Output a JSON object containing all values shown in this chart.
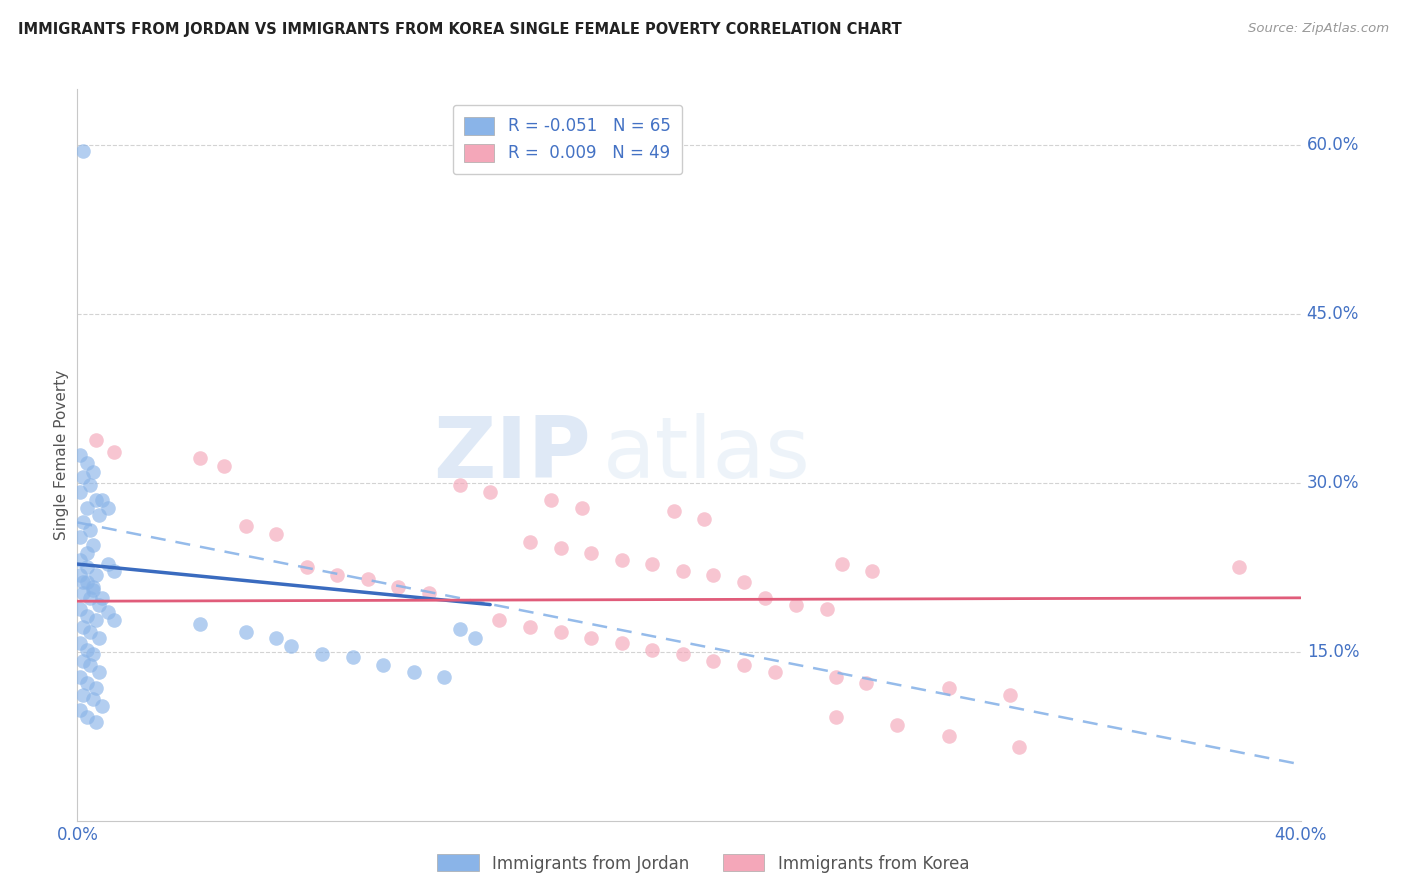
{
  "title": "IMMIGRANTS FROM JORDAN VS IMMIGRANTS FROM KOREA SINGLE FEMALE POVERTY CORRELATION CHART",
  "source": "Source: ZipAtlas.com",
  "ylabel": "Single Female Poverty",
  "x_min": 0.0,
  "x_max": 0.4,
  "y_min": 0.0,
  "y_max": 0.65,
  "x_ticks": [
    0.0,
    0.05,
    0.1,
    0.15,
    0.2,
    0.25,
    0.3,
    0.35,
    0.4
  ],
  "x_tick_labels": [
    "0.0%",
    "",
    "",
    "",
    "",
    "",
    "",
    "",
    "40.0%"
  ],
  "y_ticks_right": [
    0.15,
    0.3,
    0.45,
    0.6
  ],
  "y_tick_labels_right": [
    "15.0%",
    "30.0%",
    "45.0%",
    "60.0%"
  ],
  "jordan_R": "-0.051",
  "jordan_N": "65",
  "korea_R": "0.009",
  "korea_N": "49",
  "jordan_color": "#8ab4e8",
  "korea_color": "#f4a7b9",
  "jordan_line_color": "#3a6bbf",
  "korea_line_color": "#e05c7a",
  "jordan_dash_color": "#8ab4e8",
  "grid_color": "#c8c8c8",
  "background_color": "#ffffff",
  "watermark_zip": "ZIP",
  "watermark_atlas": "atlas",
  "legend_jordan_label": "Immigrants from Jordan",
  "legend_korea_label": "Immigrants from Korea",
  "jordan_line_x0": 0.0,
  "jordan_line_y0": 0.228,
  "jordan_line_x1": 0.135,
  "jordan_line_y1": 0.192,
  "korea_line_x0": 0.0,
  "korea_line_y0": 0.195,
  "korea_line_x1": 0.4,
  "korea_line_y1": 0.198,
  "dash_line_x0": 0.0,
  "dash_line_y0": 0.265,
  "dash_line_x1": 0.4,
  "dash_line_y1": 0.05,
  "jordan_points": [
    [
      0.002,
      0.595
    ],
    [
      0.001,
      0.325
    ],
    [
      0.003,
      0.318
    ],
    [
      0.005,
      0.31
    ],
    [
      0.002,
      0.305
    ],
    [
      0.004,
      0.298
    ],
    [
      0.001,
      0.292
    ],
    [
      0.006,
      0.285
    ],
    [
      0.003,
      0.278
    ],
    [
      0.007,
      0.272
    ],
    [
      0.002,
      0.265
    ],
    [
      0.004,
      0.258
    ],
    [
      0.001,
      0.252
    ],
    [
      0.005,
      0.245
    ],
    [
      0.003,
      0.238
    ],
    [
      0.008,
      0.285
    ],
    [
      0.01,
      0.278
    ],
    [
      0.001,
      0.232
    ],
    [
      0.003,
      0.225
    ],
    [
      0.006,
      0.218
    ],
    [
      0.002,
      0.212
    ],
    [
      0.005,
      0.205
    ],
    [
      0.008,
      0.198
    ],
    [
      0.01,
      0.228
    ],
    [
      0.012,
      0.222
    ],
    [
      0.001,
      0.218
    ],
    [
      0.003,
      0.212
    ],
    [
      0.005,
      0.208
    ],
    [
      0.002,
      0.202
    ],
    [
      0.004,
      0.198
    ],
    [
      0.007,
      0.192
    ],
    [
      0.001,
      0.188
    ],
    [
      0.003,
      0.182
    ],
    [
      0.006,
      0.178
    ],
    [
      0.002,
      0.172
    ],
    [
      0.004,
      0.168
    ],
    [
      0.007,
      0.162
    ],
    [
      0.01,
      0.185
    ],
    [
      0.012,
      0.178
    ],
    [
      0.001,
      0.158
    ],
    [
      0.003,
      0.152
    ],
    [
      0.005,
      0.148
    ],
    [
      0.002,
      0.142
    ],
    [
      0.004,
      0.138
    ],
    [
      0.007,
      0.132
    ],
    [
      0.001,
      0.128
    ],
    [
      0.003,
      0.122
    ],
    [
      0.006,
      0.118
    ],
    [
      0.002,
      0.112
    ],
    [
      0.005,
      0.108
    ],
    [
      0.008,
      0.102
    ],
    [
      0.001,
      0.098
    ],
    [
      0.003,
      0.092
    ],
    [
      0.006,
      0.088
    ],
    [
      0.04,
      0.175
    ],
    [
      0.055,
      0.168
    ],
    [
      0.065,
      0.162
    ],
    [
      0.07,
      0.155
    ],
    [
      0.08,
      0.148
    ],
    [
      0.09,
      0.145
    ],
    [
      0.1,
      0.138
    ],
    [
      0.11,
      0.132
    ],
    [
      0.12,
      0.128
    ],
    [
      0.125,
      0.17
    ],
    [
      0.13,
      0.162
    ]
  ],
  "korea_points": [
    [
      0.006,
      0.338
    ],
    [
      0.012,
      0.328
    ],
    [
      0.04,
      0.322
    ],
    [
      0.048,
      0.315
    ],
    [
      0.125,
      0.298
    ],
    [
      0.135,
      0.292
    ],
    [
      0.155,
      0.285
    ],
    [
      0.165,
      0.278
    ],
    [
      0.195,
      0.275
    ],
    [
      0.205,
      0.268
    ],
    [
      0.055,
      0.262
    ],
    [
      0.065,
      0.255
    ],
    [
      0.148,
      0.248
    ],
    [
      0.158,
      0.242
    ],
    [
      0.168,
      0.238
    ],
    [
      0.178,
      0.232
    ],
    [
      0.188,
      0.228
    ],
    [
      0.198,
      0.222
    ],
    [
      0.208,
      0.218
    ],
    [
      0.218,
      0.212
    ],
    [
      0.075,
      0.225
    ],
    [
      0.085,
      0.218
    ],
    [
      0.095,
      0.215
    ],
    [
      0.105,
      0.208
    ],
    [
      0.115,
      0.202
    ],
    [
      0.225,
      0.198
    ],
    [
      0.235,
      0.192
    ],
    [
      0.245,
      0.188
    ],
    [
      0.25,
      0.228
    ],
    [
      0.26,
      0.222
    ],
    [
      0.138,
      0.178
    ],
    [
      0.148,
      0.172
    ],
    [
      0.158,
      0.168
    ],
    [
      0.168,
      0.162
    ],
    [
      0.178,
      0.158
    ],
    [
      0.188,
      0.152
    ],
    [
      0.198,
      0.148
    ],
    [
      0.208,
      0.142
    ],
    [
      0.218,
      0.138
    ],
    [
      0.228,
      0.132
    ],
    [
      0.248,
      0.128
    ],
    [
      0.258,
      0.122
    ],
    [
      0.285,
      0.118
    ],
    [
      0.305,
      0.112
    ],
    [
      0.248,
      0.092
    ],
    [
      0.268,
      0.085
    ],
    [
      0.285,
      0.075
    ],
    [
      0.308,
      0.065
    ],
    [
      0.38,
      0.225
    ]
  ]
}
